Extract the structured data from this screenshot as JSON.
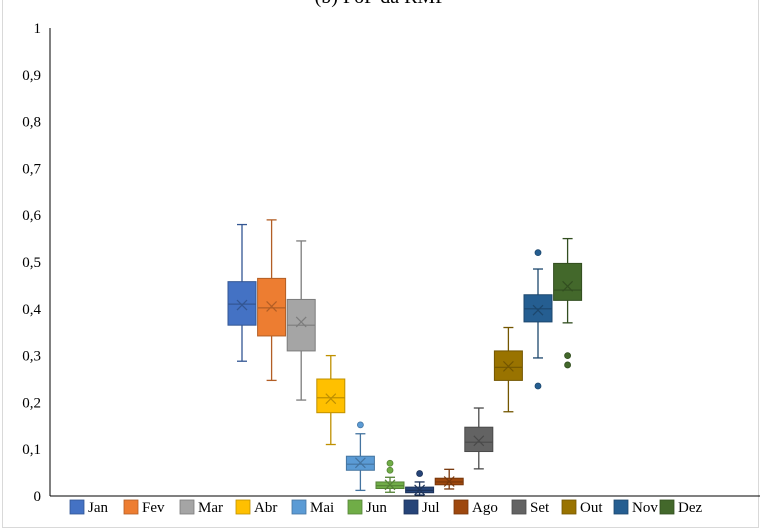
{
  "chart_data": {
    "type": "boxplot",
    "title": "(b) FoF da RMF",
    "xlabel": "",
    "ylabel": "",
    "ylim": [
      0,
      1
    ],
    "yticks": [
      "0",
      "0,1",
      "0,2",
      "0,3",
      "0,4",
      "0,5",
      "0,6",
      "0,7",
      "0,8",
      "0,9",
      "1"
    ],
    "legend_position": "bottom",
    "grid": false,
    "series": [
      {
        "name": "Jan",
        "color": "#4472c4",
        "min": 0.288,
        "q1": 0.365,
        "median": 0.41,
        "q3": 0.458,
        "max": 0.58,
        "mean": 0.408,
        "outliers": []
      },
      {
        "name": "Fev",
        "color": "#ed7d31",
        "min": 0.247,
        "q1": 0.342,
        "median": 0.402,
        "q3": 0.465,
        "max": 0.59,
        "mean": 0.405,
        "outliers": []
      },
      {
        "name": "Mar",
        "color": "#a5a5a5",
        "min": 0.205,
        "q1": 0.31,
        "median": 0.365,
        "q3": 0.42,
        "max": 0.545,
        "mean": 0.372,
        "outliers": []
      },
      {
        "name": "Abr",
        "color": "#ffc000",
        "min": 0.11,
        "q1": 0.178,
        "median": 0.21,
        "q3": 0.25,
        "max": 0.3,
        "mean": 0.208,
        "outliers": []
      },
      {
        "name": "Mai",
        "color": "#5b9bd5",
        "min": 0.012,
        "q1": 0.055,
        "median": 0.068,
        "q3": 0.085,
        "max": 0.133,
        "mean": 0.071,
        "outliers": [
          0.152
        ]
      },
      {
        "name": "Jun",
        "color": "#70ad47",
        "min": 0.008,
        "q1": 0.016,
        "median": 0.022,
        "q3": 0.03,
        "max": 0.04,
        "mean": 0.024,
        "outliers": [
          0.07,
          0.055
        ]
      },
      {
        "name": "Jul",
        "color": "#264478",
        "min": 0.002,
        "q1": 0.007,
        "median": 0.012,
        "q3": 0.019,
        "max": 0.03,
        "mean": 0.013,
        "outliers": [
          0.048
        ]
      },
      {
        "name": "Ago",
        "color": "#9e480e",
        "min": 0.015,
        "q1": 0.024,
        "median": 0.03,
        "q3": 0.038,
        "max": 0.057,
        "mean": 0.031,
        "outliers": []
      },
      {
        "name": "Set",
        "color": "#636363",
        "min": 0.058,
        "q1": 0.095,
        "median": 0.115,
        "q3": 0.147,
        "max": 0.188,
        "mean": 0.118,
        "outliers": []
      },
      {
        "name": "Out",
        "color": "#997300",
        "min": 0.18,
        "q1": 0.247,
        "median": 0.275,
        "q3": 0.31,
        "max": 0.36,
        "mean": 0.277,
        "outliers": []
      },
      {
        "name": "Nov",
        "color": "#255e91",
        "min": 0.295,
        "q1": 0.372,
        "median": 0.4,
        "q3": 0.43,
        "max": 0.485,
        "mean": 0.397,
        "outliers": [
          0.52,
          0.235
        ]
      },
      {
        "name": "Dez",
        "color": "#43682b",
        "min": 0.37,
        "q1": 0.418,
        "median": 0.44,
        "q3": 0.497,
        "max": 0.55,
        "mean": 0.448,
        "outliers": [
          0.3,
          0.28
        ]
      }
    ]
  }
}
